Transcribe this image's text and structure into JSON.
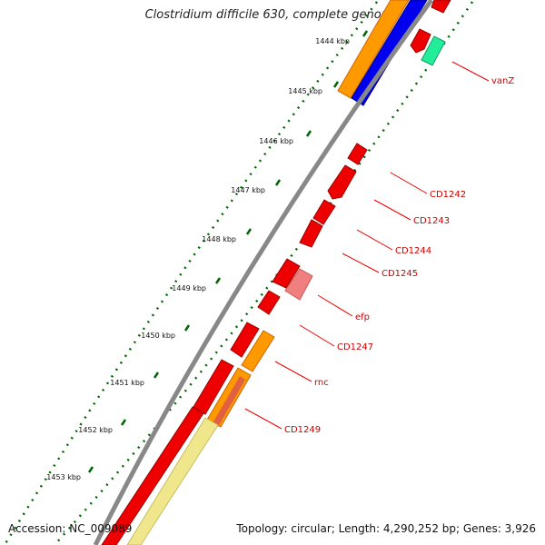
{
  "title": "Clostridium difficile 630, complete genome",
  "footer": {
    "accession": "Accession: NC_009089",
    "summary": "Topology: circular; Length: 4,290,252 bp; Genes: 3,926"
  },
  "colors": {
    "cds_red": "#ee0000",
    "orange": "#ff9900",
    "blue": "#0000ee",
    "teal": "#22ee99",
    "pink": "#f08080",
    "pale_yellow": "#f0e68c",
    "backbone": "#888888",
    "tick_green": "#006600",
    "label_red": "#cc0000"
  },
  "ticks": [
    {
      "label": "1444 kbp"
    },
    {
      "label": "1445 kbp"
    },
    {
      "label": "1446 kbp"
    },
    {
      "label": "1447 kbp"
    },
    {
      "label": "1448 kbp"
    },
    {
      "label": "1449 kbp"
    },
    {
      "label": "1450 kbp"
    },
    {
      "label": "1451 kbp"
    },
    {
      "label": "1452 kbp"
    },
    {
      "label": "1453 kbp"
    }
  ],
  "genes": [
    {
      "label": "vanZ"
    },
    {
      "label": "CD1242"
    },
    {
      "label": "CD1243"
    },
    {
      "label": "CD1244"
    },
    {
      "label": "CD1245"
    },
    {
      "label": "efp"
    },
    {
      "label": "CD1247"
    },
    {
      "label": "rnc"
    },
    {
      "label": "CD1249"
    }
  ]
}
